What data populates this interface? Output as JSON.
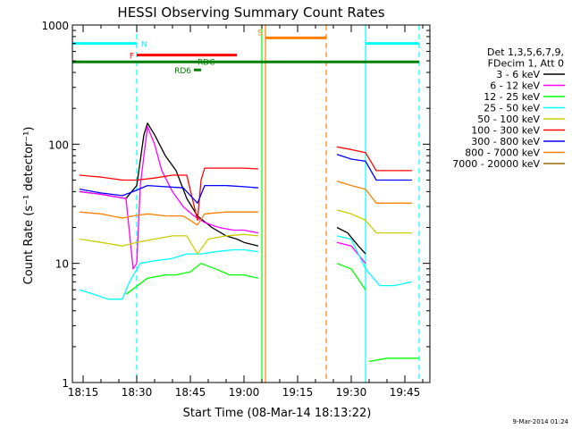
{
  "chart_data": {
    "type": "line",
    "title": "HESSI Observing Summary Count Rates",
    "xlabel": "Start Time (08-Mar-14 18:13:22)",
    "ylabel": "Count Rate (s⁻¹ detector⁻¹)",
    "x_scale": "time",
    "y_scale": "log",
    "xlim": [
      "18:12",
      "19:52"
    ],
    "ylim": [
      1,
      1000
    ],
    "x_ticks": [
      "18:15",
      "18:30",
      "18:45",
      "19:00",
      "19:15",
      "19:30",
      "19:45"
    ],
    "y_ticks": [
      "1",
      "10",
      "100",
      "1000"
    ],
    "legend_title": [
      "Det 1,3,5,6,7,9,",
      "FDecim 1, Att 0"
    ],
    "legend_position": "right",
    "footer": "9-Mar-2014 01:24",
    "state_bars": [
      {
        "label": "N",
        "color": "#00ffff",
        "level": 700,
        "spans": [
          [
            "18:12",
            "18:30"
          ],
          [
            "19:34",
            "19:49"
          ]
        ]
      },
      {
        "label": "F",
        "color": "#ff0000",
        "level": 560,
        "spans": [
          [
            "18:30",
            "18:58"
          ]
        ]
      },
      {
        "label": "S",
        "color": "#ff8000",
        "level": 780,
        "spans": [
          [
            "19:06",
            "19:23"
          ]
        ]
      },
      {
        "label": "RDC",
        "color": "#008000",
        "level": 490,
        "spans": [
          [
            "18:12",
            "19:49"
          ]
        ]
      },
      {
        "label": "RD6",
        "color": "#008000",
        "level": 420,
        "spans": [
          [
            "18:46",
            "18:48"
          ]
        ]
      }
    ],
    "markers": [
      {
        "time": "18:30",
        "style": "dashed",
        "color": "#00ffff"
      },
      {
        "time": "19:05",
        "style": "solid",
        "color": "#00ff00"
      },
      {
        "time": "19:06",
        "style": "solid",
        "color": "#ff8000"
      },
      {
        "time": "19:23",
        "style": "dashed",
        "color": "#ff8000"
      },
      {
        "time": "19:34",
        "style": "solid",
        "color": "#00ffff"
      },
      {
        "time": "19:49",
        "style": "dashed",
        "color": "#00ffff"
      }
    ],
    "series": [
      {
        "name": "3 - 6 keV",
        "color": "#000000",
        "segments": [
          [
            [
              "18:14",
              40
            ],
            [
              "18:20",
              38
            ],
            [
              "18:27",
              35
            ],
            [
              "18:30",
              45
            ],
            [
              "18:32",
              120
            ],
            [
              "18:33",
              150
            ],
            [
              "18:35",
              120
            ],
            [
              "18:38",
              80
            ],
            [
              "18:41",
              60
            ],
            [
              "18:44",
              35
            ],
            [
              "18:47",
              25
            ],
            [
              "18:51",
              20
            ],
            [
              "18:55",
              17
            ],
            [
              "18:58",
              16
            ],
            [
              "19:00",
              15
            ],
            [
              "19:04",
              14
            ]
          ],
          [
            [
              "19:26",
              20
            ],
            [
              "19:29",
              18
            ],
            [
              "19:32",
              14
            ],
            [
              "19:34",
              12
            ]
          ]
        ]
      },
      {
        "name": "6 - 12 keV",
        "color": "#ff00ff",
        "segments": [
          [
            [
              "18:14",
              40
            ],
            [
              "18:20",
              38
            ],
            [
              "18:27",
              35
            ],
            [
              "18:29",
              9
            ],
            [
              "18:30",
              10
            ],
            [
              "18:31",
              45
            ],
            [
              "18:33",
              140
            ],
            [
              "18:35",
              100
            ],
            [
              "18:37",
              60
            ],
            [
              "18:40",
              40
            ],
            [
              "18:43",
              30
            ],
            [
              "18:46",
              25
            ],
            [
              "18:49",
              22
            ],
            [
              "18:53",
              20
            ],
            [
              "18:57",
              19
            ],
            [
              "19:00",
              19
            ],
            [
              "19:04",
              18
            ]
          ],
          [
            [
              "19:26",
              15
            ],
            [
              "19:30",
              14
            ],
            [
              "19:34",
              10
            ]
          ]
        ]
      },
      {
        "name": "12 - 25 keV",
        "color": "#00ff00",
        "segments": [
          [
            [
              "18:27",
              5.5
            ],
            [
              "18:33",
              7.5
            ],
            [
              "18:38",
              8
            ],
            [
              "18:41",
              8
            ],
            [
              "18:45",
              8.5
            ],
            [
              "18:48",
              10
            ],
            [
              "18:52",
              9
            ],
            [
              "18:56",
              8
            ],
            [
              "19:00",
              8
            ],
            [
              "19:04",
              7.5
            ]
          ],
          [
            [
              "19:26",
              10
            ],
            [
              "19:30",
              9
            ],
            [
              "19:34",
              6
            ]
          ],
          [
            [
              "19:35",
              1.5
            ],
            [
              "19:40",
              1.6
            ],
            [
              "19:45",
              1.6
            ],
            [
              "19:49",
              1.6
            ]
          ]
        ]
      },
      {
        "name": "25 - 50 keV",
        "color": "#00ffff",
        "segments": [
          [
            [
              "18:14",
              6
            ],
            [
              "18:18",
              5.5
            ],
            [
              "18:22",
              5
            ],
            [
              "18:26",
              5
            ],
            [
              "18:28",
              7
            ],
            [
              "18:31",
              10
            ],
            [
              "18:35",
              10.5
            ],
            [
              "18:40",
              11
            ],
            [
              "18:44",
              12
            ],
            [
              "18:48",
              12
            ],
            [
              "18:52",
              12.5
            ],
            [
              "18:57",
              13
            ],
            [
              "19:00",
              13
            ],
            [
              "19:04",
              12.5
            ]
          ],
          [
            [
              "19:26",
              17
            ],
            [
              "19:30",
              16
            ],
            [
              "19:34",
              9
            ],
            [
              "19:38",
              6.5
            ],
            [
              "19:42",
              6.5
            ],
            [
              "19:47",
              7
            ]
          ]
        ]
      },
      {
        "name": "50 - 100 keV",
        "color": "#cccc00",
        "segments": [
          [
            [
              "18:14",
              16
            ],
            [
              "18:20",
              15
            ],
            [
              "18:26",
              14
            ],
            [
              "18:30",
              15
            ],
            [
              "18:35",
              16
            ],
            [
              "18:40",
              17
            ],
            [
              "18:44",
              17
            ],
            [
              "18:47",
              12
            ],
            [
              "18:50",
              16
            ],
            [
              "18:55",
              17
            ],
            [
              "19:00",
              17.5
            ],
            [
              "19:04",
              17
            ]
          ],
          [
            [
              "19:26",
              28
            ],
            [
              "19:30",
              26
            ],
            [
              "19:34",
              23
            ],
            [
              "19:37",
              18
            ],
            [
              "19:42",
              18
            ],
            [
              "19:47",
              18
            ]
          ]
        ]
      },
      {
        "name": "100 - 300 keV",
        "color": "#ff0000",
        "segments": [
          [
            [
              "18:14",
              55
            ],
            [
              "18:20",
              53
            ],
            [
              "18:26",
              50
            ],
            [
              "18:30",
              50
            ],
            [
              "18:35",
              52
            ],
            [
              "18:40",
              55
            ],
            [
              "18:44",
              55
            ],
            [
              "18:47",
              23
            ],
            [
              "18:48",
              50
            ],
            [
              "18:49",
              63
            ],
            [
              "18:55",
              63
            ],
            [
              "19:00",
              63
            ],
            [
              "19:04",
              62
            ]
          ],
          [
            [
              "19:26",
              95
            ],
            [
              "19:30",
              90
            ],
            [
              "19:34",
              85
            ],
            [
              "19:37",
              60
            ],
            [
              "19:42",
              60
            ],
            [
              "19:47",
              60
            ]
          ]
        ]
      },
      {
        "name": "300 - 800 keV",
        "color": "#0000ff",
        "segments": [
          [
            [
              "18:14",
              42
            ],
            [
              "18:20",
              39
            ],
            [
              "18:26",
              37
            ],
            [
              "18:29",
              40
            ],
            [
              "18:33",
              45
            ],
            [
              "18:38",
              44
            ],
            [
              "18:43",
              43
            ],
            [
              "18:47",
              32
            ],
            [
              "18:49",
              45
            ],
            [
              "18:55",
              45
            ],
            [
              "19:00",
              44
            ],
            [
              "19:04",
              43
            ]
          ],
          [
            [
              "19:26",
              82
            ],
            [
              "19:30",
              75
            ],
            [
              "19:34",
              72
            ],
            [
              "19:37",
              50
            ],
            [
              "19:42",
              50
            ],
            [
              "19:47",
              50
            ]
          ]
        ]
      },
      {
        "name": "800 - 7000 keV",
        "color": "#ff8000",
        "segments": [
          [
            [
              "18:14",
              27
            ],
            [
              "18:20",
              26
            ],
            [
              "18:26",
              24
            ],
            [
              "18:29",
              25
            ],
            [
              "18:33",
              26
            ],
            [
              "18:38",
              25
            ],
            [
              "18:43",
              25
            ],
            [
              "18:47",
              21
            ],
            [
              "18:49",
              26
            ],
            [
              "18:55",
              27
            ],
            [
              "19:00",
              27
            ],
            [
              "19:04",
              27
            ]
          ],
          [
            [
              "19:26",
              49
            ],
            [
              "19:30",
              45
            ],
            [
              "19:34",
              42
            ],
            [
              "19:37",
              32
            ],
            [
              "19:42",
              32
            ],
            [
              "19:47",
              32
            ]
          ]
        ]
      },
      {
        "name": "7000 - 20000 keV",
        "color": "#996600",
        "segments": []
      }
    ]
  }
}
